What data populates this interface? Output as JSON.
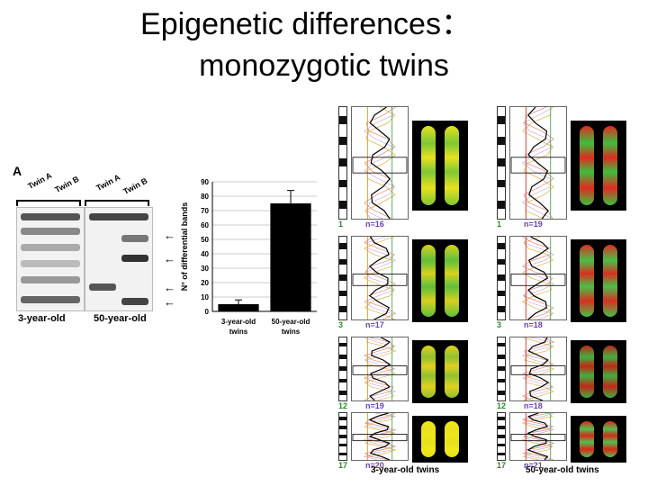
{
  "slide": {
    "title_line1": "Epigenetic differences：",
    "title_line2": "monozygotic twins"
  },
  "panel_a": {
    "letter": "A",
    "lane_labels": [
      "Twin A",
      "Twin B",
      "Twin A",
      "Twin B"
    ],
    "captions": [
      "3-year-old",
      "50-year-old"
    ]
  },
  "chart_data": {
    "type": "bar",
    "categories": [
      "3-year-old twins",
      "50-year-old twins"
    ],
    "category_lines": [
      [
        "3-year-old",
        "twins"
      ],
      [
        "50-year-old",
        "twins"
      ]
    ],
    "values": [
      5,
      75
    ],
    "errors": [
      3,
      9
    ],
    "ylabel": "N° of differential bands",
    "ylim": [
      0,
      90
    ],
    "yticks": [
      0,
      10,
      20,
      30,
      40,
      50,
      60,
      70,
      80,
      90
    ],
    "grid": true,
    "bar_color": "#000000"
  },
  "panel_b": {
    "rows": [
      {
        "chr_left": "1",
        "n_left": "n=16",
        "chr_right": "1",
        "n_right": "n=19"
      },
      {
        "chr_left": "3",
        "n_left": "n=17",
        "chr_right": "3",
        "n_right": "n=18"
      },
      {
        "chr_left": "12",
        "n_left": "n=19",
        "chr_right": "12",
        "n_right": "n=18"
      },
      {
        "chr_left": "17",
        "n_left": "n=20",
        "chr_right": "17",
        "n_right": "n=21"
      }
    ],
    "captions": [
      "3-year-old twins",
      "50-year-old twins"
    ]
  }
}
